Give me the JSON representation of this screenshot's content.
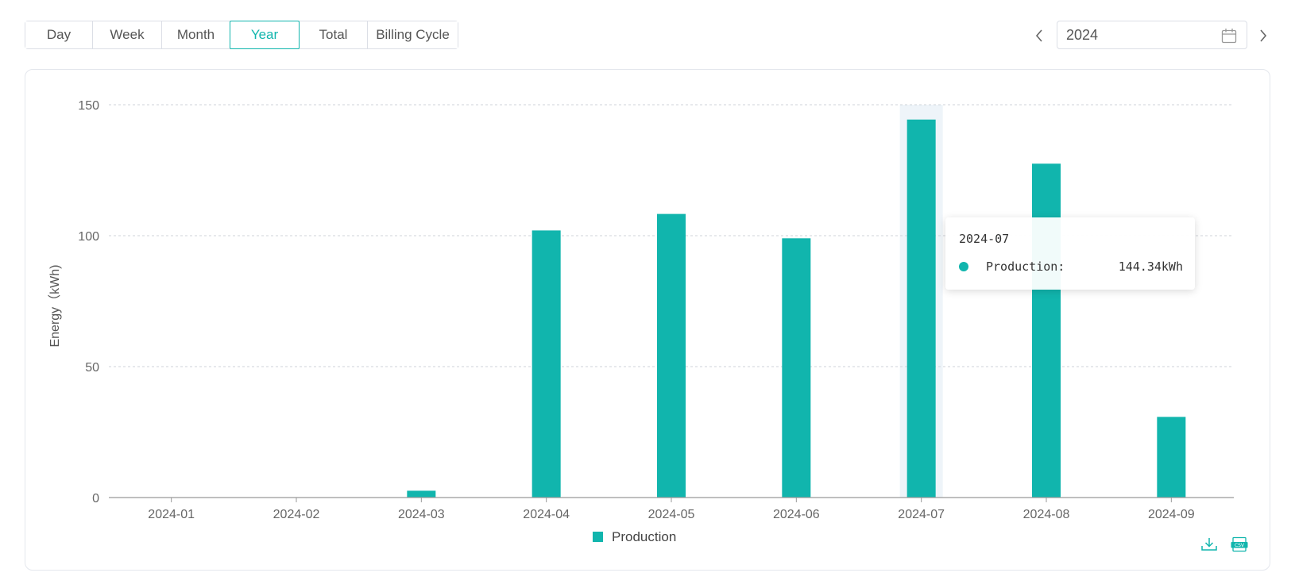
{
  "tabs": [
    {
      "label": "Day",
      "active": false
    },
    {
      "label": "Week",
      "active": false
    },
    {
      "label": "Month",
      "active": false
    },
    {
      "label": "Year",
      "active": true
    },
    {
      "label": "Total",
      "active": false
    },
    {
      "label": "Billing Cycle",
      "active": false
    }
  ],
  "date_picker": {
    "value": "2024"
  },
  "colors": {
    "accent": "#11b5ad",
    "hover_band": "#eef4f9",
    "grid": "#cfd3da"
  },
  "icons": {
    "prev": "chevron-left-icon",
    "next": "chevron-right-icon",
    "calendar": "calendar-icon",
    "download": "download-icon",
    "csv": "csv-export-icon"
  },
  "tooltip": {
    "title": "2024-07",
    "series": "Production:",
    "value": "144.34kWh"
  },
  "chart_data": {
    "type": "bar",
    "ylabel": "Energy（kWh)",
    "xlabel": "",
    "ylim": [
      0,
      150
    ],
    "yticks": [
      "0",
      "50",
      "100",
      "150"
    ],
    "categories": [
      "2024-01",
      "2024-02",
      "2024-03",
      "2024-04",
      "2024-05",
      "2024-06",
      "2024-07",
      "2024-08",
      "2024-09"
    ],
    "series": [
      {
        "name": "Production",
        "values": [
          0,
          0,
          2.6,
          102,
          108.3,
          99,
          144.34,
          127.5,
          30.8
        ]
      }
    ],
    "highlighted_category": "2024-07",
    "grid": true,
    "legend": "bottom-center"
  }
}
